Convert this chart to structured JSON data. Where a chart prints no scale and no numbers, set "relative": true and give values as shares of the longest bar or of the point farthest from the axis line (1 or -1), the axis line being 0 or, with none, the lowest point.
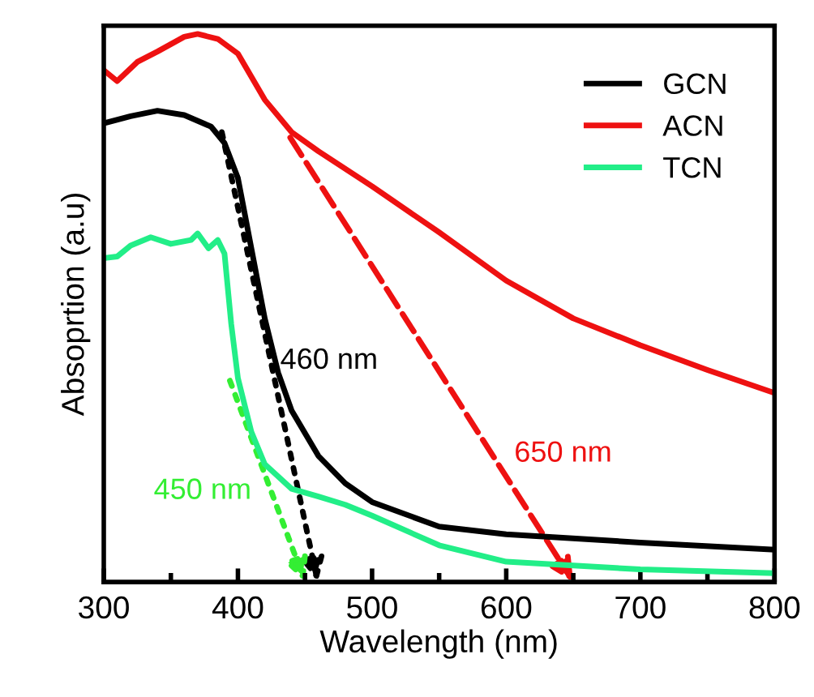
{
  "chart_data": {
    "type": "line",
    "relative": true,
    "xlabel": "Wavelength (nm)",
    "ylabel": "Absoprtion (a.u)",
    "xlim": [
      300,
      800
    ],
    "xticks": [
      300,
      {
        "value": 350,
        "label": null
      },
      400,
      {
        "value": 450,
        "label": null
      },
      500,
      {
        "value": 550,
        "label": null
      },
      600,
      {
        "value": 650,
        "label": null
      },
      700,
      {
        "value": 750,
        "label": null
      },
      800
    ],
    "tick_labels": "x",
    "legend": "top right",
    "grid": false,
    "marker": "none",
    "line_style": "solid",
    "series": [
      {
        "name": "GCN",
        "color": "#000000",
        "x": [
          300,
          320,
          340,
          360,
          380,
          390,
          400,
          410,
          420,
          430,
          440,
          460,
          480,
          500,
          550,
          600,
          700,
          800
        ],
        "values": [
          0.837,
          0.85,
          0.86,
          0.852,
          0.831,
          0.801,
          0.737,
          0.609,
          0.481,
          0.382,
          0.313,
          0.23,
          0.18,
          0.146,
          0.101,
          0.087,
          0.072,
          0.059
        ]
      },
      {
        "name": "ACN",
        "color": "#ee1111",
        "x": [
          300,
          310,
          325,
          340,
          360,
          370,
          385,
          400,
          420,
          440,
          460,
          500,
          550,
          600,
          650,
          700,
          750,
          800
        ],
        "values": [
          0.934,
          0.914,
          0.949,
          0.968,
          0.995,
          1.0,
          0.991,
          0.964,
          0.88,
          0.821,
          0.786,
          0.722,
          0.638,
          0.55,
          0.481,
          0.432,
          0.387,
          0.345
        ]
      },
      {
        "name": "TCN",
        "color": "#22ee88",
        "x": [
          300,
          310,
          320,
          335,
          350,
          365,
          370,
          378,
          385,
          390,
          395,
          400,
          410,
          420,
          440,
          460,
          480,
          500,
          550,
          600,
          700,
          800
        ],
        "values": [
          0.591,
          0.594,
          0.614,
          0.629,
          0.617,
          0.624,
          0.636,
          0.609,
          0.624,
          0.599,
          0.471,
          0.372,
          0.274,
          0.215,
          0.17,
          0.156,
          0.141,
          0.121,
          0.067,
          0.037,
          0.023,
          0.016
        ]
      }
    ],
    "annotations": [
      "460 nm",
      "650 nm",
      "450 nm"
    ]
  }
}
